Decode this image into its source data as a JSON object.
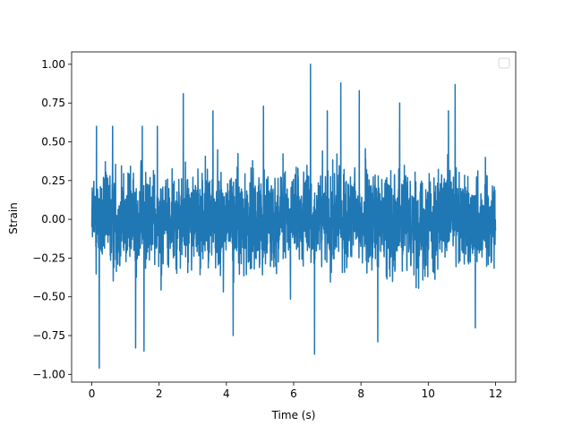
{
  "chart_data": {
    "type": "line",
    "title": "",
    "xlabel": "Time (s)",
    "ylabel": "Strain",
    "xlim": [
      -0.6,
      12.6
    ],
    "ylim": [
      -1.05,
      1.08
    ],
    "xticks": [
      "0",
      "2",
      "4",
      "6",
      "8",
      "10",
      "12"
    ],
    "xtick_values": [
      0,
      2,
      4,
      6,
      8,
      10,
      12
    ],
    "yticks": [
      "−1.00",
      "−0.75",
      "−0.50",
      "−0.25",
      "0.00",
      "0.25",
      "0.50",
      "0.75",
      "1.00"
    ],
    "ytick_values": [
      -1.0,
      -0.75,
      -0.5,
      -0.25,
      0.0,
      0.25,
      0.5,
      0.75,
      1.0
    ],
    "grid": false,
    "legend": {
      "placement": "upper right",
      "entries": []
    },
    "series": [
      {
        "color": "#1f77b4",
        "x_range": [
          0,
          12
        ],
        "typical_envelope": [
          -0.45,
          0.45
        ],
        "peaks": [
          {
            "x": 0.14,
            "y": 0.6
          },
          {
            "x": 0.22,
            "y": -0.96
          },
          {
            "x": 0.62,
            "y": 0.6
          },
          {
            "x": 1.3,
            "y": -0.83
          },
          {
            "x": 1.5,
            "y": 0.6
          },
          {
            "x": 1.55,
            "y": -0.85
          },
          {
            "x": 1.95,
            "y": 0.6
          },
          {
            "x": 2.72,
            "y": 0.81
          },
          {
            "x": 3.6,
            "y": 0.7
          },
          {
            "x": 4.2,
            "y": -0.75
          },
          {
            "x": 5.1,
            "y": 0.73
          },
          {
            "x": 6.5,
            "y": 1.0
          },
          {
            "x": 6.62,
            "y": -0.87
          },
          {
            "x": 7.0,
            "y": 0.7
          },
          {
            "x": 7.4,
            "y": 0.88
          },
          {
            "x": 7.95,
            "y": 0.83
          },
          {
            "x": 8.5,
            "y": -0.79
          },
          {
            "x": 9.15,
            "y": 0.75
          },
          {
            "x": 10.6,
            "y": 0.7
          },
          {
            "x": 10.8,
            "y": 0.87
          },
          {
            "x": 11.4,
            "y": -0.7
          }
        ]
      }
    ]
  }
}
